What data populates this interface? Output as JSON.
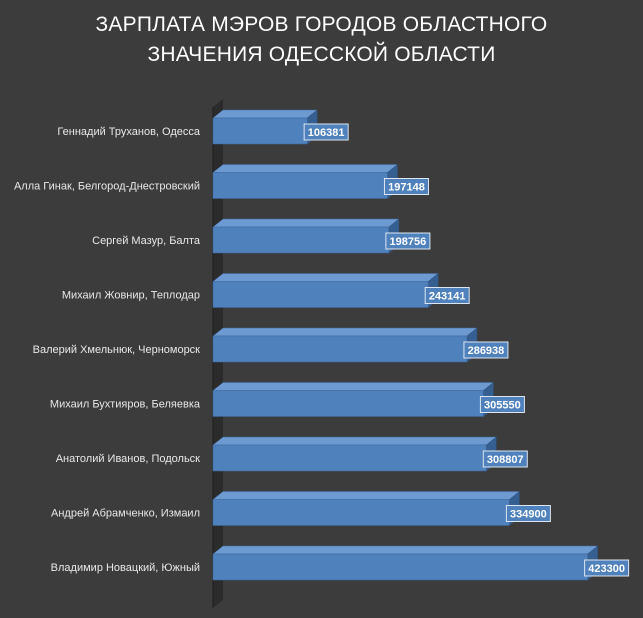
{
  "chart_data": {
    "type": "bar",
    "orientation": "horizontal",
    "style": "3d",
    "title": "ЗАРПЛАТА МЭРОВ ГОРОДОВ ОБЛАСТНОГО ЗНАЧЕНИЯ ОДЕССКОЙ ОБЛАСТИ",
    "title_lines": [
      "ЗАРПЛАТА МЭРОВ ГОРОДОВ ОБЛАСТНОГО",
      "ЗНАЧЕНИЯ ОДЕССКОЙ ОБЛАСТИ"
    ],
    "categories": [
      "Геннадий Труханов, Одесса",
      "Алла Гинак, Белгород-Днестровский",
      "Сергей Мазур, Балта",
      "Михаил Жовнир, Теплодар",
      "Валерий Хмельнюк, Черноморск",
      "Михаил Бухтияров, Беляевка",
      "Анатолий Иванов, Подольск",
      "Андрей Абрамченко, Измаил",
      "Владимир Новацкий, Южный"
    ],
    "values": [
      106381,
      197148,
      198756,
      243141,
      286938,
      305550,
      308807,
      334900,
      423300
    ],
    "xlim": [
      0,
      450000
    ],
    "grid": false,
    "legend": "none",
    "data_labels": true,
    "colors": {
      "background": "#3c3c3c",
      "bar_front": "#4f81bd",
      "bar_top": "#6d9ad0",
      "bar_side": "#355f91",
      "wall": "#2b2b2b",
      "label_box": "#4f81bd",
      "label_border": "#dde6f0"
    }
  }
}
